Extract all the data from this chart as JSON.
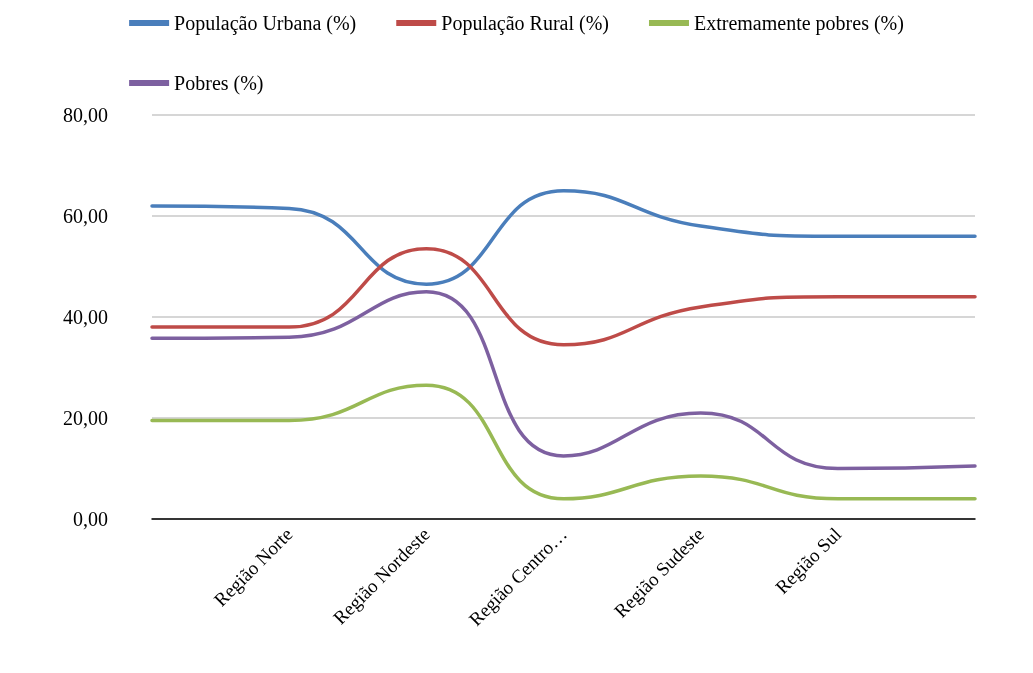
{
  "chart_data": {
    "type": "line",
    "categories": [
      null,
      "Região Norte",
      "Região Nordeste",
      "Região Centro…",
      "Região Sudeste",
      "Região Sul",
      null
    ],
    "series": [
      {
        "name": "População Urbana (%)",
        "color": "#4a7ebb",
        "values": [
          62,
          61.5,
          46.5,
          65,
          58,
          56,
          56
        ]
      },
      {
        "name": "População Rural (%)",
        "color": "#be4b48",
        "values": [
          38,
          38,
          53.5,
          34.5,
          42,
          44,
          44
        ]
      },
      {
        "name": "Extremamente pobres (%)",
        "color": "#98b954",
        "values": [
          19.5,
          19.5,
          26.5,
          4,
          8.5,
          4,
          4
        ]
      },
      {
        "name": "Pobres (%)",
        "color": "#7d60a0",
        "values": [
          35.8,
          36,
          45,
          12.5,
          21,
          10,
          10.5
        ]
      }
    ],
    "ylim": [
      0,
      80
    ],
    "yticks": [
      {
        "value": 0,
        "label": "0,00"
      },
      {
        "value": 20,
        "label": "20,00"
      },
      {
        "value": 40,
        "label": "40,00"
      },
      {
        "value": 60,
        "label": "60,00"
      },
      {
        "value": 80,
        "label": "80,00"
      }
    ],
    "grid": "y",
    "legend": "top",
    "marker": "none",
    "line_style": "solid"
  }
}
